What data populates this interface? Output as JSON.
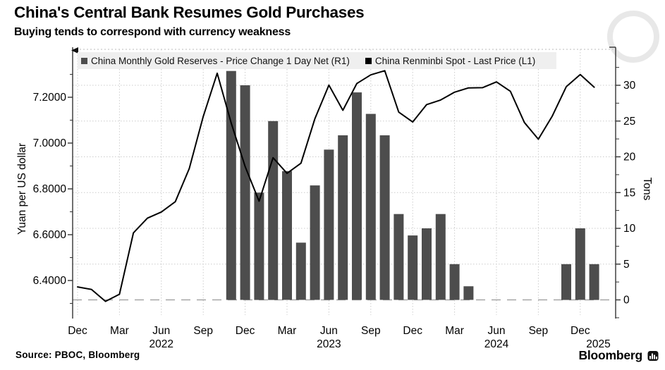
{
  "header": {
    "title": "China's Central Bank Resumes Gold Purchases",
    "subtitle": "Buying tends to correspond with currency weakness"
  },
  "legend": [
    {
      "label": "China Monthly Gold Reserves - Price Change 1 Day Net (R1)",
      "color": "#4d4d4d"
    },
    {
      "label": "China Renminbi Spot - Last Price (L1)",
      "color": "#000000"
    }
  ],
  "source": "Source: PBOC, Bloomberg",
  "branding": "Bloomberg",
  "chart_data": {
    "type": "bar+line combo",
    "title": "China's Central Bank Resumes Gold Purchases",
    "grid": true,
    "legend_position": "top",
    "left_axis": {
      "title": "Yuan per US dollar",
      "min": 6.28,
      "max": 7.35,
      "ticks": [
        {
          "label": "7.2000",
          "value": 7.2
        },
        {
          "label": "7.0000",
          "value": 7.0
        },
        {
          "label": "6.8000",
          "value": 6.8
        },
        {
          "label": "6.6000",
          "value": 6.6
        },
        {
          "label": "6.4000",
          "value": 6.4
        }
      ],
      "minor_tick_step": 0.1
    },
    "right_axis": {
      "title": "Tons",
      "min": -3,
      "max": 33,
      "ticks": [
        {
          "label": "30",
          "value": 30
        },
        {
          "label": "25",
          "value": 25
        },
        {
          "label": "20",
          "value": 20
        },
        {
          "label": "15",
          "value": 15
        },
        {
          "label": "10",
          "value": 10
        },
        {
          "label": "5",
          "value": 5
        },
        {
          "label": "0",
          "value": 0
        }
      ],
      "minor_tick_step": 2.5
    },
    "x_axis": {
      "ticks": [
        {
          "label": "Dec",
          "month": "Dec 2021"
        },
        {
          "label": "Mar",
          "month": "Mar 2022"
        },
        {
          "label": "Jun",
          "month": "Jun 2022"
        },
        {
          "label": "Sep",
          "month": "Sep 2022"
        },
        {
          "label": "Dec",
          "month": "Dec 2022"
        },
        {
          "label": "Mar",
          "month": "Mar 2023"
        },
        {
          "label": "Jun",
          "month": "Jun 2023"
        },
        {
          "label": "Sep",
          "month": "Sep 2023"
        },
        {
          "label": "Dec",
          "month": "Dec 2023"
        },
        {
          "label": "Mar",
          "month": "Mar 2024"
        },
        {
          "label": "Jun",
          "month": "Jun 2024"
        },
        {
          "label": "Sep",
          "month": "Sep 2024"
        },
        {
          "label": "Dec",
          "month": "Dec 2024"
        }
      ],
      "years": [
        {
          "label": "2022",
          "month": "Jun 2022"
        },
        {
          "label": "2023",
          "month": "Jun 2023"
        },
        {
          "label": "2024",
          "month": "Jun 2024"
        },
        {
          "label": "2025",
          "month": "Jan 2025",
          "offset_months": 0.3
        }
      ]
    },
    "series": [
      {
        "name": "China Monthly Gold Reserves - Price Change 1 Day Net",
        "axis": "R1",
        "type": "bar",
        "unit": "tons",
        "color": "#4d4d4d",
        "points": [
          {
            "month": "Nov 2022",
            "value": 32
          },
          {
            "month": "Dec 2022",
            "value": 30
          },
          {
            "month": "Jan 2023",
            "value": 15
          },
          {
            "month": "Feb 2023",
            "value": 25
          },
          {
            "month": "Mar 2023",
            "value": 18
          },
          {
            "month": "Apr 2023",
            "value": 8
          },
          {
            "month": "May 2023",
            "value": 16
          },
          {
            "month": "Jun 2023",
            "value": 21
          },
          {
            "month": "Jul 2023",
            "value": 23
          },
          {
            "month": "Aug 2023",
            "value": 29
          },
          {
            "month": "Sep 2023",
            "value": 26
          },
          {
            "month": "Oct 2023",
            "value": 23
          },
          {
            "month": "Nov 2023",
            "value": 12
          },
          {
            "month": "Dec 2023",
            "value": 9
          },
          {
            "month": "Jan 2024",
            "value": 10
          },
          {
            "month": "Feb 2024",
            "value": 12
          },
          {
            "month": "Mar 2024",
            "value": 5
          },
          {
            "month": "Apr 2024",
            "value": 1.9
          },
          {
            "month": "Nov 2024",
            "value": 5
          },
          {
            "month": "Dec 2024",
            "value": 10
          },
          {
            "month": "Jan 2025",
            "value": 5
          }
        ]
      },
      {
        "name": "China Renminbi Spot - Last Price",
        "axis": "L1",
        "type": "line",
        "unit": "yuan per US dollar",
        "color": "#000000",
        "x": [
          "Dec 2021",
          "Jan 2022",
          "Feb 2022",
          "Mar 2022",
          "Apr 2022",
          "May 2022",
          "Jun 2022",
          "Jul 2022",
          "Aug 2022",
          "Sep 2022",
          "Oct 2022",
          "Nov 2022",
          "Dec 2022",
          "Jan 2023",
          "Feb 2023",
          "Mar 2023",
          "Apr 2023",
          "May 2023",
          "Jun 2023",
          "Jul 2023",
          "Aug 2023",
          "Sep 2023",
          "Oct 2023",
          "Nov 2023",
          "Dec 2023",
          "Jan 2024",
          "Feb 2024",
          "Mar 2024",
          "Apr 2024",
          "May 2024",
          "Jun 2024",
          "Jul 2024",
          "Aug 2024",
          "Sep 2024",
          "Oct 2024",
          "Nov 2024",
          "Dec 2024",
          "Jan 2025"
        ],
        "values": [
          6.372,
          6.361,
          6.309,
          6.34,
          6.608,
          6.672,
          6.699,
          6.744,
          6.889,
          7.116,
          7.305,
          7.088,
          6.898,
          6.746,
          6.936,
          6.868,
          6.912,
          7.107,
          7.253,
          7.143,
          7.26,
          7.298,
          7.316,
          7.135,
          7.092,
          7.168,
          7.188,
          7.222,
          7.241,
          7.242,
          7.267,
          7.226,
          7.09,
          7.017,
          7.118,
          7.246,
          7.299,
          7.244
        ]
      }
    ]
  }
}
